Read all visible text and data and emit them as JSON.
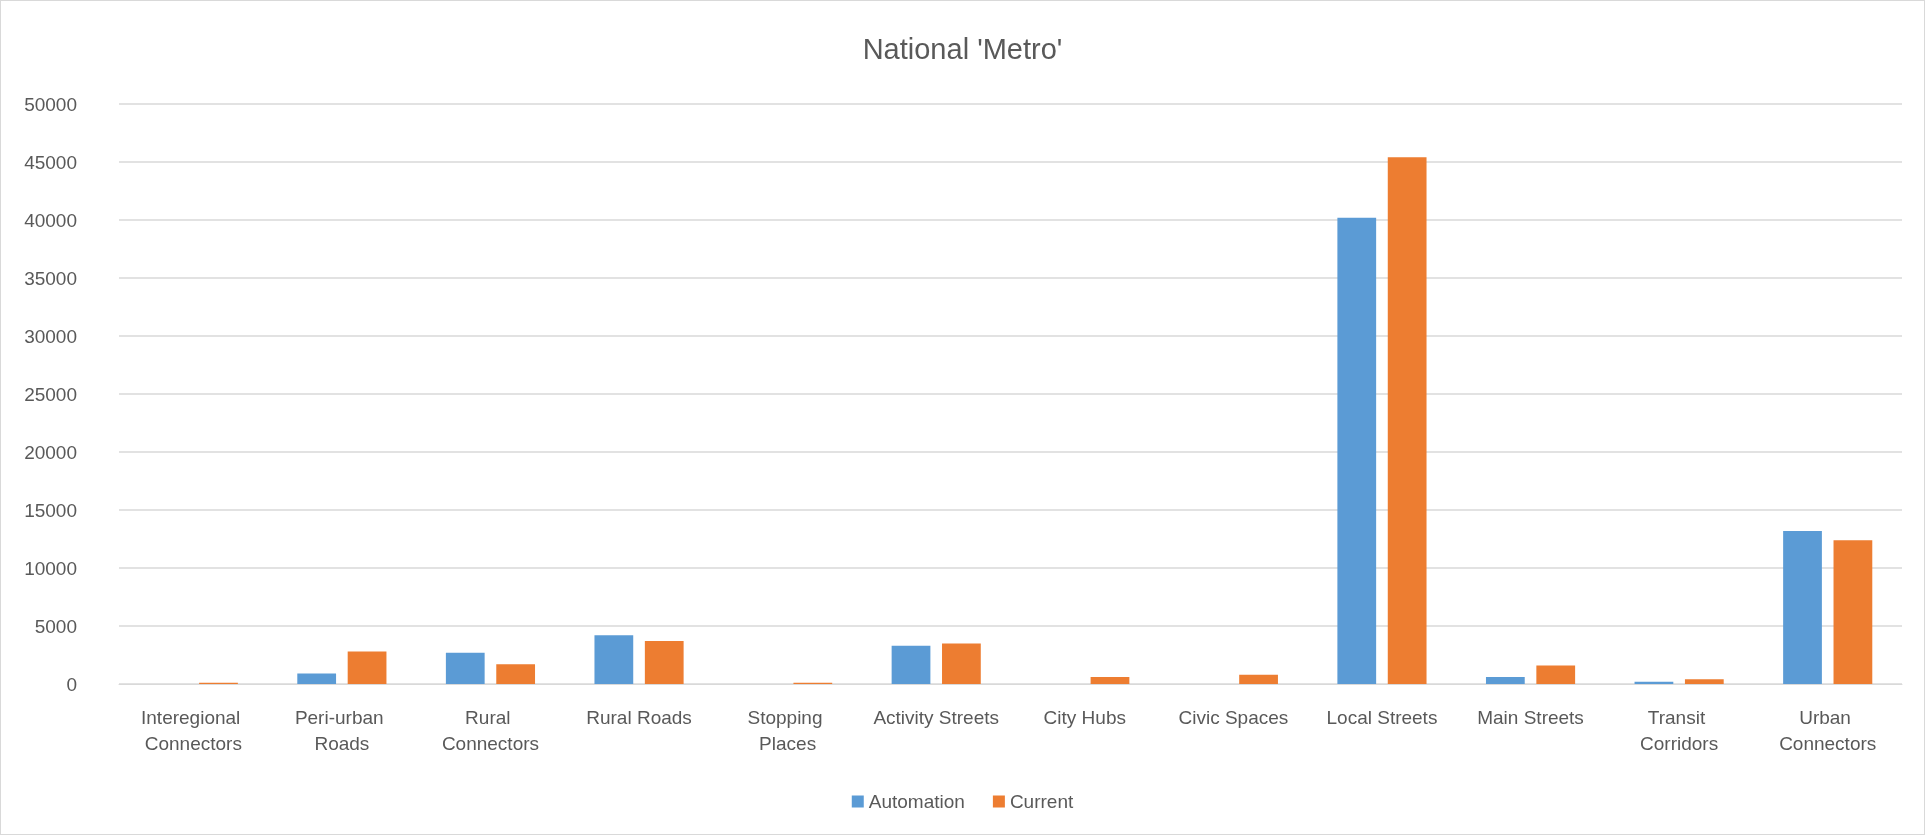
{
  "chart_data": {
    "type": "bar",
    "title": "National 'Metro'",
    "categories": [
      "Interegional Connectors",
      "Peri-urban Roads",
      "Rural Connectors",
      "Rural Roads",
      "Stopping Places",
      "Activity Streets",
      "City Hubs",
      "Civic Spaces",
      "Local Streets",
      "Main Streets",
      "Transit Corridors",
      "Urban Connectors"
    ],
    "series": [
      {
        "name": "Automation",
        "color": "#5b9bd5",
        "values": [
          0,
          900,
          2700,
          4200,
          0,
          3300,
          0,
          0,
          40200,
          600,
          200,
          13200
        ]
      },
      {
        "name": "Current",
        "color": "#ed7d31",
        "values": [
          100,
          2800,
          1700,
          3700,
          100,
          3500,
          600,
          800,
          45400,
          1600,
          400,
          12400
        ]
      }
    ],
    "ylim": [
      0,
      50000
    ],
    "yticks": [
      0,
      5000,
      10000,
      15000,
      20000,
      25000,
      30000,
      35000,
      40000,
      45000,
      50000
    ],
    "grid": "y",
    "legend": "bottom"
  }
}
